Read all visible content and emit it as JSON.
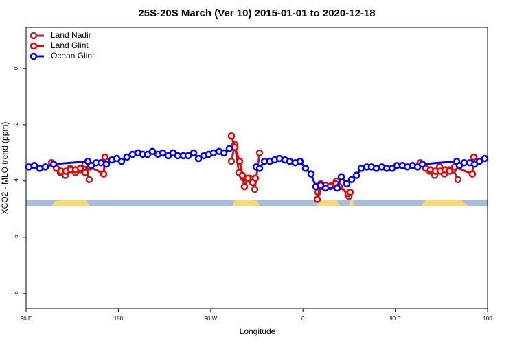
{
  "chart_data": {
    "type": "line",
    "title": "25S-20S March (Ver 10)   2015-01-01 to 2020-12-18",
    "xlabel": "Longitude",
    "ylabel": "XCO2 - MLO trend (ppm)",
    "xlim": [
      90,
      540
    ],
    "xticks": [
      {
        "value": 90,
        "label": "90 E"
      },
      180,
      {
        "value": 270,
        "label": "90 W"
      },
      {
        "value": 360,
        "label": "0"
      },
      {
        "value": 450,
        "label": "90 E"
      },
      {
        "value": 540,
        "label": "180"
      }
    ],
    "ylim": [
      -8.54,
      1.46
    ],
    "yticks": [
      0,
      -2,
      -4,
      -6,
      -8
    ],
    "legend": "upper left",
    "series": [
      {
        "name": "Land Nadir",
        "color": "#a52a2a",
        "x": [
          123.5,
          128.2,
          132.9,
          138.2,
          142.9,
          147.6,
          151.6,
          null,
          290.2,
          293.6,
          297.6,
          302.3,
          308.3,
          313,
          317.7,
          null,
          374.6,
          379.3,
          392.7,
          404.8,
          null,
          476.4,
          483.8,
          488.5,
          493.2,
          497.9,
          502.6,
          506.5,
          511.2
        ],
        "values": [
          -3.7,
          -3.8,
          -3.55,
          -3.7,
          -3.6,
          -3.4,
          -3.95,
          null,
          -3.3,
          -2.7,
          -3.7,
          -3.9,
          -3.9,
          -4.3,
          -3.0,
          null,
          -4.4,
          -4.2,
          -4.0,
          -4.55,
          null,
          -3.4,
          -3.65,
          -3.8,
          -3.5,
          -3.75,
          -3.6,
          -3.6,
          -3.95
        ]
      },
      {
        "name": "Land Glint",
        "color": "#ee0000",
        "x": [
          114.8,
          119.5,
          124.1,
          128.8,
          133.5,
          138.2,
          142.9,
          147.6,
          152.3,
          165.7,
          167,
          null,
          290.2,
          293.6,
          298.3,
          300.9,
          302.9,
          306.3,
          311,
          313.6,
          null,
          374,
          377.3,
          382,
          386.6,
          392,
          395.3,
          404,
          406,
          null,
          474.3,
          479.7,
          484.4,
          489.1,
          493.8,
          498.5,
          503.1,
          507.8,
          525.2,
          526.6
        ],
        "values": [
          -3.35,
          -3.55,
          -3.65,
          -3.65,
          -3.6,
          -3.6,
          -3.55,
          -3.7,
          -3.5,
          -3.75,
          -3.15,
          null,
          -2.4,
          -2.8,
          -3.3,
          -3.8,
          -4.2,
          -3.9,
          -4.05,
          -3.9,
          null,
          -4.65,
          -4.1,
          -4.15,
          -4.2,
          -4.1,
          -4.2,
          -4.45,
          -4.4,
          null,
          -3.35,
          -3.55,
          -3.6,
          -3.65,
          -3.65,
          -3.6,
          -3.65,
          -3.5,
          -3.75,
          -3.15
        ]
      },
      {
        "name": "Ocean Glint",
        "color": "#0000ee",
        "x": [
          92.7,
          98,
          103.4,
          108.8,
          116.8,
          150.3,
          153.6,
          158.3,
          163,
          168.4,
          173.7,
          178.4,
          183.1,
          188.4,
          193.8,
          199.2,
          203.8,
          208.5,
          213.2,
          218.6,
          223.3,
          228.6,
          233.3,
          238,
          243.4,
          248,
          253.4,
          258.1,
          263.4,
          268.1,
          272.8,
          278.2,
          282.9,
          288.2,
          null,
          314.3,
          317.7,
          322.4,
          327.7,
          332.4,
          337.1,
          342.5,
          347.1,
          352.5,
          357.2,
          362.5,
          367.9,
          372.6,
          377.3,
          382,
          393.4,
          397.4,
          402.7,
          407.4,
          412.1,
          416.8,
          422.2,
          426.8,
          431.5,
          436.9,
          441.6,
          446.9,
          451.6,
          457,
          461.7,
          467,
          471.7,
          476.4,
          509.9,
          512.5,
          517.2,
          522.6,
          527.3,
          532,
          537.3
        ],
        "values": [
          -3.5,
          -3.45,
          -3.55,
          -3.5,
          -3.4,
          -3.3,
          -3.45,
          -3.35,
          -3.35,
          -3.4,
          -3.25,
          -3.2,
          -3.3,
          -3.15,
          -3.05,
          -3.0,
          -3.05,
          -3.05,
          -2.95,
          -3.05,
          -3.0,
          -3.1,
          -3.0,
          -3.1,
          -3.1,
          -3.1,
          -3.0,
          -3.2,
          -3.1,
          -3.05,
          -3.0,
          -2.95,
          -3.0,
          -2.85,
          null,
          -3.5,
          -3.55,
          -3.3,
          -3.3,
          -3.25,
          -3.2,
          -3.25,
          -3.3,
          -3.35,
          -3.3,
          -3.55,
          -3.75,
          -4.2,
          -4.15,
          -4.25,
          -4.25,
          -3.85,
          -4.1,
          -3.95,
          -3.8,
          -3.55,
          -3.5,
          -3.5,
          -3.55,
          -3.5,
          -3.55,
          -3.55,
          -3.45,
          -3.45,
          -3.5,
          -3.45,
          -3.5,
          -3.4,
          -3.3,
          -3.45,
          -3.35,
          -3.35,
          -3.4,
          -3.3,
          -3.2
        ]
      }
    ]
  }
}
